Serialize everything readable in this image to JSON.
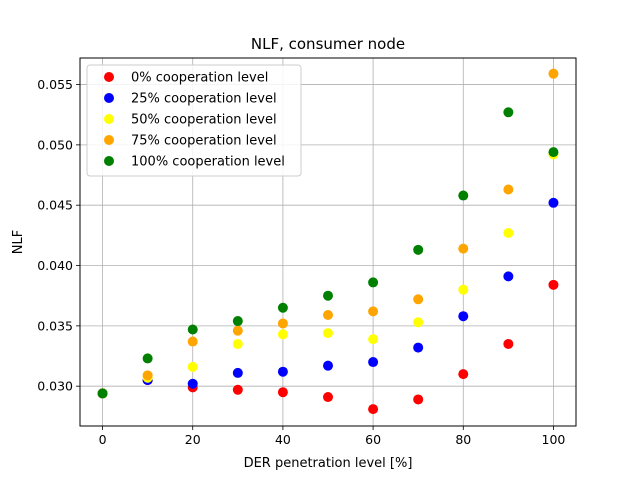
{
  "chart_data": {
    "type": "scatter",
    "title": "NLF, consumer node",
    "xlabel": "DER penetration level [%]",
    "ylabel": "NLF",
    "xlim": [
      -5,
      105
    ],
    "ylim": [
      0.0267,
      0.0572
    ],
    "xticks": [
      0,
      20,
      40,
      60,
      80,
      100
    ],
    "yticks": [
      0.03,
      0.035,
      0.04,
      0.045,
      0.05,
      0.055
    ],
    "ytick_labels": [
      "0.030",
      "0.035",
      "0.040",
      "0.045",
      "0.050",
      "0.055"
    ],
    "grid": true,
    "legend_position": "top-left",
    "series": [
      {
        "name": "0% cooperation level",
        "color": "#ff0000",
        "x": [
          0,
          10,
          20,
          30,
          40,
          50,
          60,
          70,
          80,
          90,
          100
        ],
        "y": [
          0.0294,
          0.0305,
          0.0299,
          0.0297,
          0.0295,
          0.0291,
          0.0281,
          0.0289,
          0.031,
          0.0335,
          0.0384
        ]
      },
      {
        "name": "25% cooperation level",
        "color": "#0000ff",
        "x": [
          0,
          10,
          20,
          30,
          40,
          50,
          60,
          70,
          80,
          90,
          100
        ],
        "y": [
          0.0294,
          0.0305,
          0.0302,
          0.0311,
          0.0312,
          0.0317,
          0.032,
          0.0332,
          0.0358,
          0.0391,
          0.0452
        ]
      },
      {
        "name": "50% cooperation level",
        "color": "#ffff00",
        "x": [
          0,
          10,
          20,
          30,
          40,
          50,
          60,
          70,
          80,
          90,
          100
        ],
        "y": [
          0.0294,
          0.0307,
          0.0316,
          0.0335,
          0.0343,
          0.0344,
          0.0339,
          0.0353,
          0.038,
          0.0427,
          0.0492
        ]
      },
      {
        "name": "75% cooperation level",
        "color": "#ffa500",
        "x": [
          0,
          10,
          20,
          30,
          40,
          50,
          60,
          70,
          80,
          90,
          100
        ],
        "y": [
          0.0294,
          0.0309,
          0.0337,
          0.0346,
          0.0352,
          0.0359,
          0.0362,
          0.0372,
          0.0414,
          0.0463,
          0.0559
        ]
      },
      {
        "name": "100% cooperation level",
        "color": "#008000",
        "x": [
          0,
          10,
          20,
          30,
          40,
          50,
          60,
          70,
          80,
          90,
          100
        ],
        "y": [
          0.0294,
          0.0323,
          0.0347,
          0.0354,
          0.0365,
          0.0375,
          0.0386,
          0.0413,
          0.0458,
          0.0527,
          0.0494
        ]
      }
    ]
  }
}
